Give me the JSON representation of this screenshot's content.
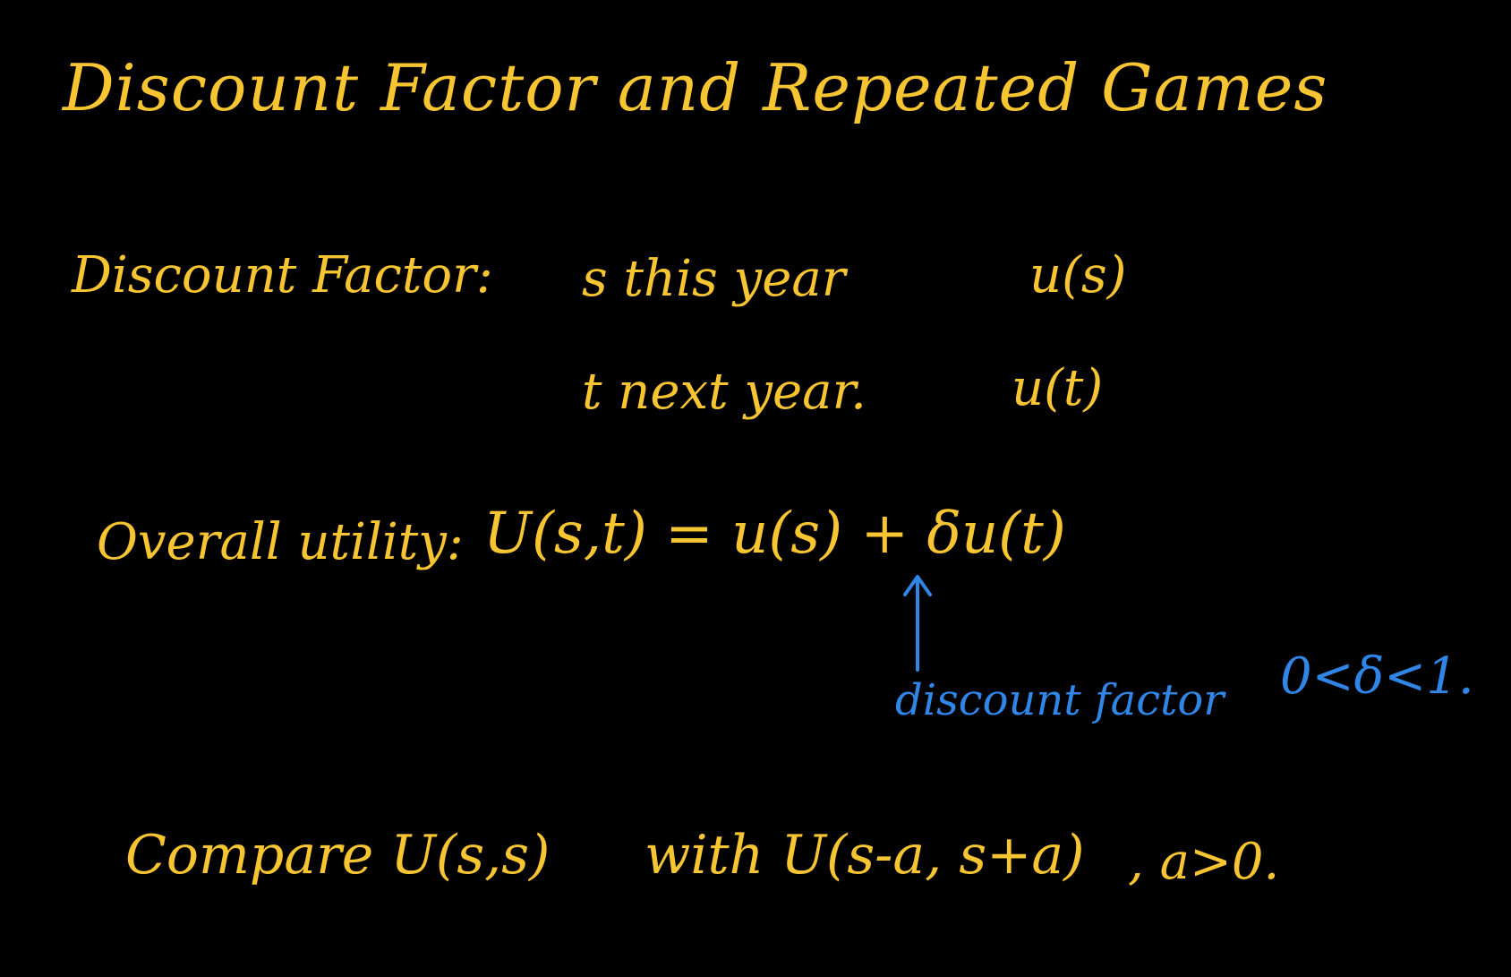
{
  "title": "Discount Factor and Repeated Games",
  "discount_factor": {
    "label": "Discount Factor:",
    "rows": [
      {
        "quantity": "s this year",
        "utility": "u(s)"
      },
      {
        "quantity": "t next year.",
        "utility": "u(t)"
      }
    ]
  },
  "overall_utility": {
    "label": "Overall utility:",
    "equation": "U(s,t) = u(s) + δu(t)"
  },
  "annotation": {
    "label": "discount factor",
    "range": "0<δ<1."
  },
  "compare": {
    "lead": "Compare U(s,s)",
    "middle": "with U(s-a, s+a)",
    "condition": ", a>0."
  },
  "colors": {
    "background": "#000000",
    "chalk_yellow": "#F7C531",
    "chalk_blue": "#2F86E6"
  }
}
